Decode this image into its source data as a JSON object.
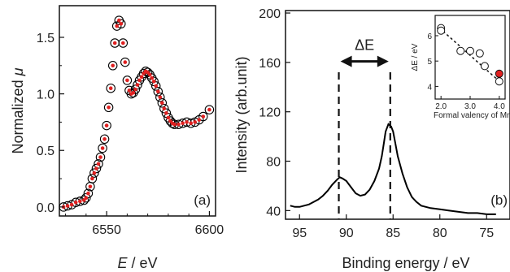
{
  "chart_data": [
    {
      "id": "a",
      "type": "scatter",
      "panel_label": "(a)",
      "xlabel_var": "E",
      "xlabel_unit": " / eV",
      "ylabel_text": "Normalized ",
      "ylabel_var": "μ",
      "xlim": [
        6527,
        6603
      ],
      "ylim": [
        -0.08,
        1.78
      ],
      "xticks": [
        6550,
        6600
      ],
      "yticks": [
        0.0,
        0.5,
        1.0,
        1.5
      ],
      "ytick_labels": [
        "0.0",
        "0.5",
        "1.0",
        "1.5"
      ],
      "grid": false,
      "series": [
        {
          "marker": "open-circle",
          "color": "#000000",
          "x": [
            6529,
            6531,
            6533,
            6535,
            6537,
            6539,
            6540,
            6541,
            6542,
            6543,
            6544,
            6545,
            6546,
            6547,
            6548,
            6549,
            6550,
            6551,
            6552,
            6553,
            6554,
            6555,
            6556,
            6557,
            6558,
            6559,
            6560,
            6561,
            6562,
            6563,
            6564,
            6565,
            6566,
            6567,
            6568,
            6569,
            6570,
            6571,
            6572,
            6573,
            6574,
            6575,
            6576,
            6577,
            6578,
            6579,
            6580,
            6581,
            6582,
            6583,
            6585,
            6587,
            6589,
            6591,
            6593,
            6595,
            6597,
            6600
          ],
          "y": [
            0.0,
            0.01,
            0.02,
            0.04,
            0.05,
            0.06,
            0.08,
            0.12,
            0.18,
            0.25,
            0.3,
            0.34,
            0.38,
            0.44,
            0.52,
            0.6,
            0.72,
            0.88,
            1.05,
            1.25,
            1.45,
            1.6,
            1.65,
            1.62,
            1.45,
            1.28,
            1.12,
            1.03,
            1.0,
            1.01,
            1.04,
            1.08,
            1.12,
            1.15,
            1.18,
            1.2,
            1.19,
            1.17,
            1.14,
            1.11,
            1.07,
            1.02,
            0.97,
            0.92,
            0.87,
            0.83,
            0.79,
            0.76,
            0.74,
            0.73,
            0.73,
            0.74,
            0.75,
            0.74,
            0.75,
            0.77,
            0.8,
            0.86
          ]
        },
        {
          "marker": "dot",
          "color": "#e02020",
          "x": [
            6529,
            6531,
            6533,
            6535,
            6537,
            6539,
            6540,
            6541,
            6542,
            6543,
            6544,
            6545,
            6546,
            6547,
            6548,
            6549,
            6550,
            6551,
            6552,
            6553,
            6554,
            6555,
            6556,
            6557,
            6558,
            6559,
            6560,
            6561,
            6562,
            6563,
            6564,
            6565,
            6566,
            6567,
            6568,
            6569,
            6570,
            6571,
            6572,
            6573,
            6574,
            6575,
            6576,
            6577,
            6578,
            6579,
            6580,
            6581,
            6582,
            6583,
            6585,
            6587,
            6589,
            6591,
            6593,
            6595,
            6597,
            6600
          ],
          "y": [
            0.0,
            0.01,
            0.02,
            0.04,
            0.05,
            0.06,
            0.08,
            0.12,
            0.18,
            0.25,
            0.3,
            0.34,
            0.38,
            0.44,
            0.52,
            0.6,
            0.72,
            0.88,
            1.05,
            1.25,
            1.45,
            1.6,
            1.65,
            1.62,
            1.45,
            1.28,
            1.12,
            1.03,
            1.0,
            1.01,
            1.04,
            1.08,
            1.12,
            1.15,
            1.18,
            1.2,
            1.19,
            1.17,
            1.14,
            1.11,
            1.07,
            1.02,
            0.97,
            0.92,
            0.87,
            0.83,
            0.79,
            0.76,
            0.74,
            0.73,
            0.73,
            0.74,
            0.75,
            0.74,
            0.75,
            0.77,
            0.8,
            0.86
          ]
        }
      ]
    },
    {
      "id": "b",
      "type": "line",
      "panel_label": "(b)",
      "xlabel": "Binding energy / eV",
      "ylabel": "Intensity (arb.unit)",
      "xlim": [
        96.5,
        72.5
      ],
      "x_reversed": true,
      "ylim": [
        33,
        202
      ],
      "xticks": [
        95,
        90,
        85,
        80,
        75
      ],
      "yticks": [
        40,
        80,
        120,
        160,
        200
      ],
      "grid": false,
      "series": [
        {
          "color": "#000000",
          "x": [
            96.0,
            95.5,
            95.0,
            94.5,
            94.0,
            93.5,
            93.0,
            92.5,
            92.0,
            91.5,
            91.0,
            90.7,
            90.4,
            90.0,
            89.5,
            89.0,
            88.5,
            88.0,
            87.5,
            87.0,
            86.5,
            86.2,
            86.0,
            85.8,
            85.5,
            85.2,
            85.0,
            84.8,
            84.5,
            84.0,
            83.5,
            83.0,
            82.5,
            82.0,
            81.5,
            81.0,
            80.0,
            79.0,
            78.0,
            77.0,
            76.0,
            75.0,
            74.0
          ],
          "y": [
            44,
            43,
            43,
            44,
            45,
            47,
            49,
            52,
            56,
            61,
            65,
            67,
            66,
            64,
            59,
            54,
            52,
            53,
            57,
            64,
            74,
            84,
            94,
            104,
            110,
            108,
            104,
            96,
            84,
            70,
            59,
            51,
            47,
            44,
            43,
            42,
            41,
            40,
            39,
            38,
            38,
            37,
            37
          ]
        }
      ],
      "annotations": [
        {
          "type": "dashed-vline",
          "x": 90.8
        },
        {
          "type": "dashed-vline",
          "x": 85.3
        },
        {
          "type": "double-arrow",
          "x1": 90.8,
          "x2": 85.3,
          "y": 170,
          "label": "ΔE"
        }
      ],
      "inset": {
        "type": "scatter",
        "xlabel": "Formal valency of Mn",
        "ylabel": "ΔE / eV",
        "xlim": [
          1.8,
          4.2
        ],
        "ylim": [
          3.5,
          6.8
        ],
        "xticks": [
          2.0,
          3.0,
          4.0
        ],
        "xtick_labels": [
          "2.0",
          "3.0",
          "4.0"
        ],
        "yticks": [
          4,
          5,
          6
        ],
        "points": [
          {
            "x": 2.0,
            "y": 6.3,
            "fill": "#ffffff"
          },
          {
            "x": 2.0,
            "y": 6.2,
            "fill": "#ffffff"
          },
          {
            "x": 2.67,
            "y": 5.4,
            "fill": "#ffffff"
          },
          {
            "x": 3.0,
            "y": 5.4,
            "fill": "#ffffff"
          },
          {
            "x": 3.33,
            "y": 5.3,
            "fill": "#ffffff"
          },
          {
            "x": 3.5,
            "y": 4.8,
            "fill": "#ffffff"
          },
          {
            "x": 4.0,
            "y": 4.5,
            "fill": "#e02020"
          },
          {
            "x": 4.0,
            "y": 4.2,
            "fill": "#ffffff"
          }
        ],
        "trend": {
          "style": "dashed",
          "x": [
            1.95,
            4.1
          ],
          "y": [
            6.3,
            4.1
          ]
        }
      }
    }
  ]
}
